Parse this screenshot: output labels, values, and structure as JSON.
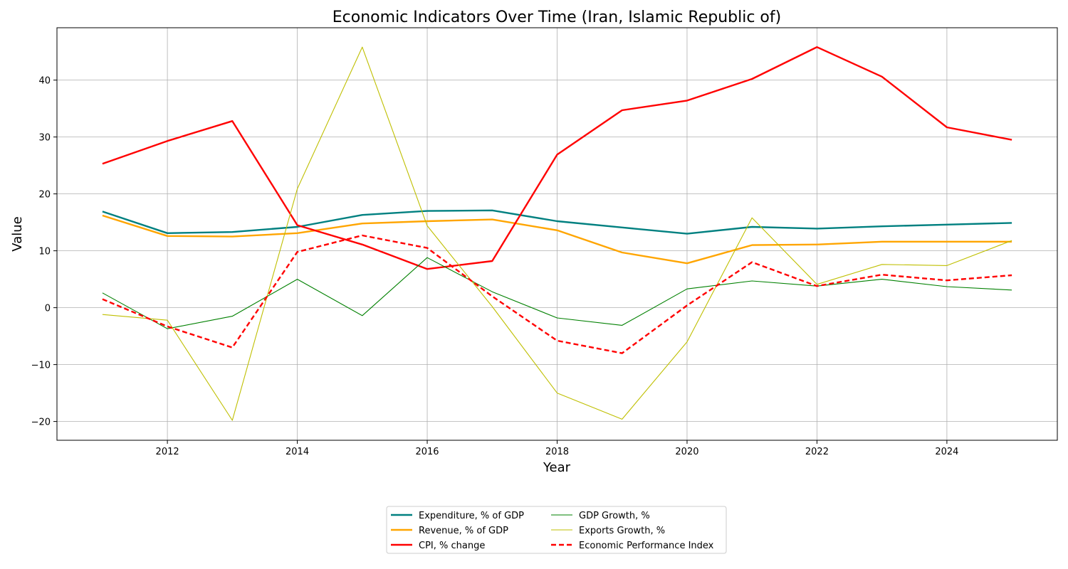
{
  "chart_data": {
    "type": "line",
    "title": "Economic Indicators Over Time (Iran, Islamic Republic of)",
    "xlabel": "Year",
    "ylabel": "Value",
    "x": [
      2011,
      2012,
      2013,
      2014,
      2015,
      2016,
      2017,
      2018,
      2019,
      2020,
      2021,
      2022,
      2023,
      2024,
      2025
    ],
    "xlim": [
      2010.3,
      2025.7
    ],
    "ylim": [
      -23.3,
      49.2
    ],
    "xticks": [
      2012,
      2014,
      2016,
      2018,
      2020,
      2022,
      2024
    ],
    "yticks": [
      -20,
      -10,
      0,
      10,
      20,
      30,
      40
    ],
    "grid": true,
    "legend_position": "bottom-center",
    "legend_columns": 2,
    "series": [
      {
        "name": "Expenditure, % of GDP",
        "color": "#008080",
        "style": "solid",
        "width": "thick",
        "values": [
          16.9,
          13.1,
          13.3,
          14.2,
          16.3,
          17.0,
          17.1,
          15.2,
          14.1,
          13.0,
          14.2,
          13.9,
          14.3,
          14.6,
          14.9
        ]
      },
      {
        "name": "Revenue, % of GDP",
        "color": "#FFA500",
        "style": "solid",
        "width": "thick",
        "values": [
          16.2,
          12.6,
          12.5,
          13.1,
          14.8,
          15.2,
          15.5,
          13.6,
          9.7,
          7.8,
          11.0,
          11.1,
          11.6,
          11.6,
          11.6
        ]
      },
      {
        "name": "CPI, % change",
        "color": "#FF0000",
        "style": "solid",
        "width": "thick",
        "values": [
          25.3,
          29.3,
          32.8,
          14.5,
          11.1,
          6.8,
          8.2,
          26.9,
          34.7,
          36.4,
          40.2,
          45.8,
          40.6,
          31.7,
          29.5
        ]
      },
      {
        "name": "GDP Growth, %",
        "color": "#008000",
        "style": "solid",
        "width": "thin",
        "values": [
          2.6,
          -3.7,
          -1.5,
          5.0,
          -1.4,
          8.8,
          2.8,
          -1.8,
          -3.1,
          3.3,
          4.7,
          3.8,
          5.0,
          3.7,
          3.1
        ]
      },
      {
        "name": "Exports Growth, %",
        "color": "#BFBF00",
        "style": "solid",
        "width": "thin",
        "values": [
          -1.2,
          -2.2,
          -19.8,
          20.9,
          45.8,
          14.4,
          0.2,
          -15.0,
          -19.6,
          -6.0,
          15.8,
          4.1,
          7.6,
          7.4,
          11.8
        ]
      },
      {
        "name": "Economic Performance Index",
        "color": "#FF0000",
        "style": "dashed",
        "width": "thick",
        "values": [
          1.5,
          -3.3,
          -7.0,
          9.8,
          12.7,
          10.5,
          2.0,
          -5.8,
          -8.0,
          0.4,
          8.0,
          3.8,
          5.8,
          4.8,
          5.7
        ]
      }
    ]
  }
}
